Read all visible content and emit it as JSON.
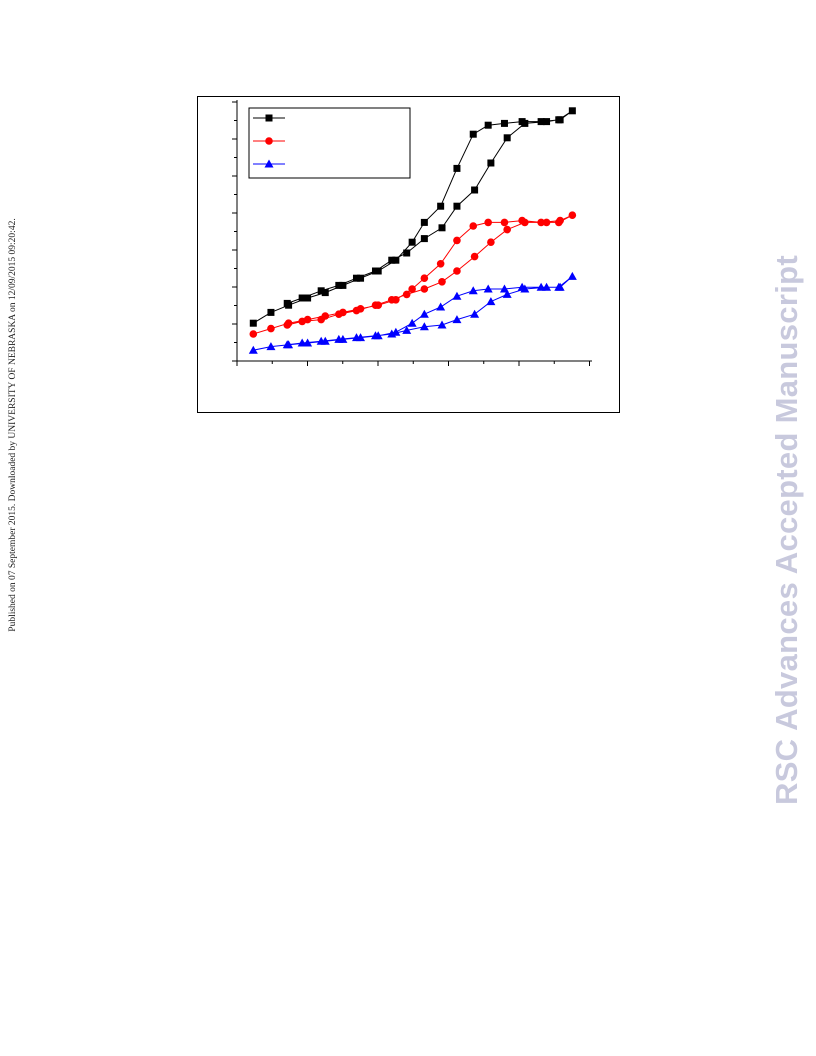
{
  "side_note": "Published on 07 September 2015. Downloaded by UNIVERSITY OF NEBRASKA on 12/09/2015 09:20:42.",
  "watermark": "RSC Advances Accepted Manuscript",
  "colors": {
    "series_1": "#000000",
    "series_2": "#ff0000",
    "series_3": "#0000ff"
  },
  "chart_data": {
    "type": "line",
    "title": "",
    "xlabel": "",
    "ylabel": "",
    "grid": false,
    "legend_position": "top-left",
    "xlim": [
      0,
      2.6
    ],
    "ylim": [
      0,
      1.45
    ],
    "series": [
      {
        "marker": "square",
        "color": "#000000",
        "points": [
          [
            0.12,
            0.21
          ],
          [
            0.25,
            0.27
          ],
          [
            0.38,
            0.31
          ],
          [
            0.52,
            0.35
          ],
          [
            0.65,
            0.38
          ],
          [
            0.78,
            0.42
          ],
          [
            0.91,
            0.46
          ],
          [
            1.04,
            0.5
          ],
          [
            1.17,
            0.56
          ],
          [
            1.29,
            0.66
          ],
          [
            1.38,
            0.77
          ],
          [
            1.5,
            0.86
          ],
          [
            1.62,
            1.07
          ],
          [
            1.74,
            1.26
          ],
          [
            1.85,
            1.31
          ],
          [
            1.97,
            1.32
          ],
          [
            2.1,
            1.33
          ],
          [
            2.24,
            1.33
          ],
          [
            2.38,
            1.34
          ],
          [
            2.47,
            1.39
          ],
          [
            2.37,
            1.34
          ],
          [
            2.28,
            1.33
          ],
          [
            2.12,
            1.32
          ],
          [
            1.99,
            1.24
          ],
          [
            1.87,
            1.1
          ],
          [
            1.75,
            0.95
          ],
          [
            1.62,
            0.86
          ],
          [
            1.51,
            0.74
          ],
          [
            1.38,
            0.68
          ],
          [
            1.25,
            0.6
          ],
          [
            1.14,
            0.56
          ],
          [
            1.02,
            0.5
          ],
          [
            0.88,
            0.46
          ],
          [
            0.75,
            0.42
          ],
          [
            0.62,
            0.39
          ],
          [
            0.48,
            0.35
          ],
          [
            0.37,
            0.32
          ]
        ]
      },
      {
        "marker": "circle",
        "color": "#ff0000",
        "points": [
          [
            0.12,
            0.15
          ],
          [
            0.25,
            0.18
          ],
          [
            0.38,
            0.21
          ],
          [
            0.52,
            0.23
          ],
          [
            0.65,
            0.25
          ],
          [
            0.78,
            0.27
          ],
          [
            0.91,
            0.29
          ],
          [
            1.04,
            0.31
          ],
          [
            1.17,
            0.34
          ],
          [
            1.29,
            0.4
          ],
          [
            1.38,
            0.46
          ],
          [
            1.5,
            0.54
          ],
          [
            1.62,
            0.67
          ],
          [
            1.74,
            0.75
          ],
          [
            1.85,
            0.77
          ],
          [
            1.97,
            0.77
          ],
          [
            2.1,
            0.78
          ],
          [
            2.24,
            0.77
          ],
          [
            2.38,
            0.78
          ],
          [
            2.47,
            0.81
          ],
          [
            2.37,
            0.77
          ],
          [
            2.28,
            0.77
          ],
          [
            2.12,
            0.77
          ],
          [
            1.99,
            0.73
          ],
          [
            1.87,
            0.66
          ],
          [
            1.75,
            0.58
          ],
          [
            1.62,
            0.5
          ],
          [
            1.51,
            0.44
          ],
          [
            1.38,
            0.4
          ],
          [
            1.25,
            0.37
          ],
          [
            1.14,
            0.34
          ],
          [
            1.02,
            0.31
          ],
          [
            0.88,
            0.28
          ],
          [
            0.75,
            0.26
          ],
          [
            0.62,
            0.23
          ],
          [
            0.48,
            0.22
          ],
          [
            0.37,
            0.2
          ]
        ]
      },
      {
        "marker": "triangle",
        "color": "#0000ff",
        "points": [
          [
            0.12,
            0.06
          ],
          [
            0.25,
            0.08
          ],
          [
            0.38,
            0.09
          ],
          [
            0.52,
            0.1
          ],
          [
            0.65,
            0.11
          ],
          [
            0.78,
            0.12
          ],
          [
            0.91,
            0.13
          ],
          [
            1.04,
            0.14
          ],
          [
            1.17,
            0.16
          ],
          [
            1.29,
            0.21
          ],
          [
            1.38,
            0.26
          ],
          [
            1.5,
            0.3
          ],
          [
            1.62,
            0.36
          ],
          [
            1.74,
            0.39
          ],
          [
            1.85,
            0.4
          ],
          [
            1.97,
            0.4
          ],
          [
            2.1,
            0.41
          ],
          [
            2.24,
            0.41
          ],
          [
            2.38,
            0.41
          ],
          [
            2.47,
            0.47
          ],
          [
            2.37,
            0.41
          ],
          [
            2.28,
            0.41
          ],
          [
            2.12,
            0.4
          ],
          [
            1.99,
            0.37
          ],
          [
            1.87,
            0.33
          ],
          [
            1.75,
            0.26
          ],
          [
            1.62,
            0.23
          ],
          [
            1.51,
            0.2
          ],
          [
            1.38,
            0.19
          ],
          [
            1.25,
            0.17
          ],
          [
            1.14,
            0.15
          ],
          [
            1.02,
            0.14
          ],
          [
            0.88,
            0.13
          ],
          [
            0.75,
            0.12
          ],
          [
            0.62,
            0.11
          ],
          [
            0.48,
            0.1
          ],
          [
            0.37,
            0.09
          ]
        ]
      }
    ]
  }
}
